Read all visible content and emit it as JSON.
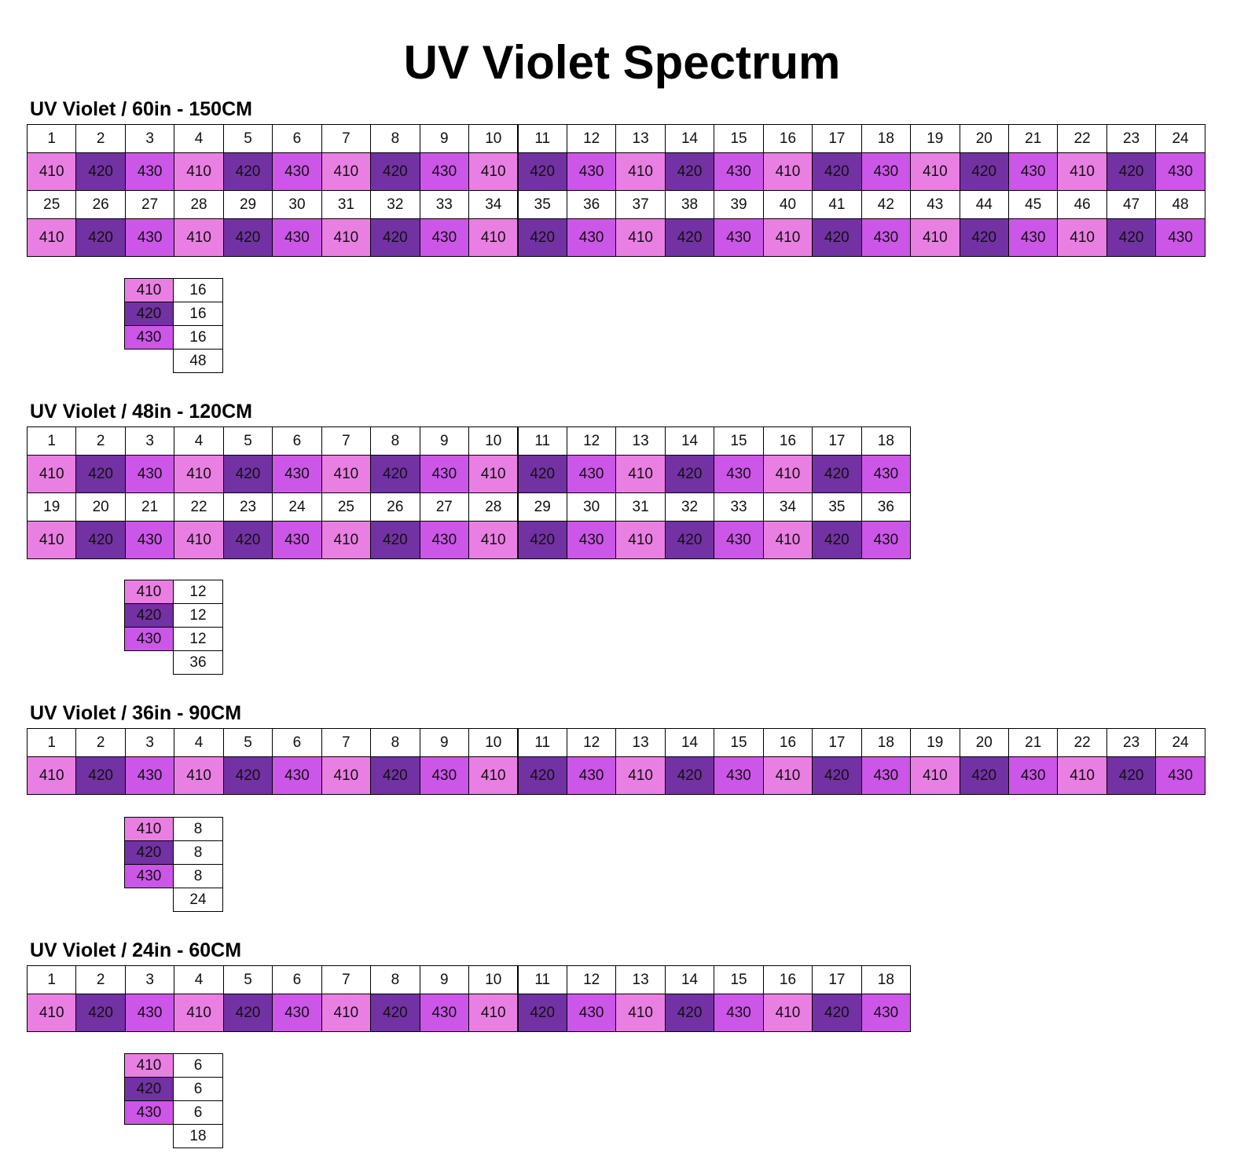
{
  "title": "UV Violet Spectrum",
  "colors": {
    "410": "#ea7fe3",
    "420": "#7232a3",
    "430": "#cc56e8"
  },
  "sections": [
    {
      "heading": "UV Violet / 60in - 150CM",
      "rows": [
        {
          "numbers": [
            1,
            2,
            3,
            4,
            5,
            6,
            7,
            8,
            9,
            10,
            11,
            12,
            13,
            14,
            15,
            16,
            17,
            18,
            19,
            20,
            21,
            22,
            23,
            24
          ],
          "wavelengths": [
            410,
            420,
            430,
            410,
            420,
            430,
            410,
            420,
            430,
            410,
            420,
            430,
            410,
            420,
            430,
            410,
            420,
            430,
            410,
            420,
            430,
            410,
            420,
            430
          ]
        },
        {
          "numbers": [
            25,
            26,
            27,
            28,
            29,
            30,
            31,
            32,
            33,
            34,
            35,
            36,
            37,
            38,
            39,
            40,
            41,
            42,
            43,
            44,
            45,
            46,
            47,
            48
          ],
          "wavelengths": [
            410,
            420,
            430,
            410,
            420,
            430,
            410,
            420,
            430,
            410,
            420,
            430,
            410,
            420,
            430,
            410,
            420,
            430,
            410,
            420,
            430,
            410,
            420,
            430
          ]
        }
      ],
      "summary": {
        "rows": [
          {
            "wavelength": 410,
            "count": 16
          },
          {
            "wavelength": 420,
            "count": 16
          },
          {
            "wavelength": 430,
            "count": 16
          }
        ],
        "total": 48
      }
    },
    {
      "heading": "UV Violet / 48in - 120CM",
      "rows": [
        {
          "numbers": [
            1,
            2,
            3,
            4,
            5,
            6,
            7,
            8,
            9,
            10,
            11,
            12,
            13,
            14,
            15,
            16,
            17,
            18
          ],
          "wavelengths": [
            410,
            420,
            430,
            410,
            420,
            430,
            410,
            420,
            430,
            410,
            420,
            430,
            410,
            420,
            430,
            410,
            420,
            430
          ]
        },
        {
          "numbers": [
            19,
            20,
            21,
            22,
            23,
            24,
            25,
            26,
            27,
            28,
            29,
            30,
            31,
            32,
            33,
            34,
            35,
            36
          ],
          "wavelengths": [
            410,
            420,
            430,
            410,
            420,
            430,
            410,
            420,
            430,
            410,
            420,
            430,
            410,
            420,
            430,
            410,
            420,
            430
          ]
        }
      ],
      "summary": {
        "rows": [
          {
            "wavelength": 410,
            "count": 12
          },
          {
            "wavelength": 420,
            "count": 12
          },
          {
            "wavelength": 430,
            "count": 12
          }
        ],
        "total": 36
      }
    },
    {
      "heading": "UV Violet / 36in - 90CM",
      "rows": [
        {
          "numbers": [
            1,
            2,
            3,
            4,
            5,
            6,
            7,
            8,
            9,
            10,
            11,
            12,
            13,
            14,
            15,
            16,
            17,
            18,
            19,
            20,
            21,
            22,
            23,
            24
          ],
          "wavelengths": [
            410,
            420,
            430,
            410,
            420,
            430,
            410,
            420,
            430,
            410,
            420,
            430,
            410,
            420,
            430,
            410,
            420,
            430,
            410,
            420,
            430,
            410,
            420,
            430
          ]
        }
      ],
      "summary": {
        "rows": [
          {
            "wavelength": 410,
            "count": 8
          },
          {
            "wavelength": 420,
            "count": 8
          },
          {
            "wavelength": 430,
            "count": 8
          }
        ],
        "total": 24
      }
    },
    {
      "heading": "UV Violet / 24in - 60CM",
      "rows": [
        {
          "numbers": [
            1,
            2,
            3,
            4,
            5,
            6,
            7,
            8,
            9,
            10,
            11,
            12,
            13,
            14,
            15,
            16,
            17,
            18
          ],
          "wavelengths": [
            410,
            420,
            430,
            410,
            420,
            430,
            410,
            420,
            430,
            410,
            420,
            430,
            410,
            420,
            430,
            410,
            420,
            430
          ]
        }
      ],
      "summary": {
        "rows": [
          {
            "wavelength": 410,
            "count": 6
          },
          {
            "wavelength": 420,
            "count": 6
          },
          {
            "wavelength": 430,
            "count": 6
          }
        ],
        "total": 18
      }
    }
  ]
}
